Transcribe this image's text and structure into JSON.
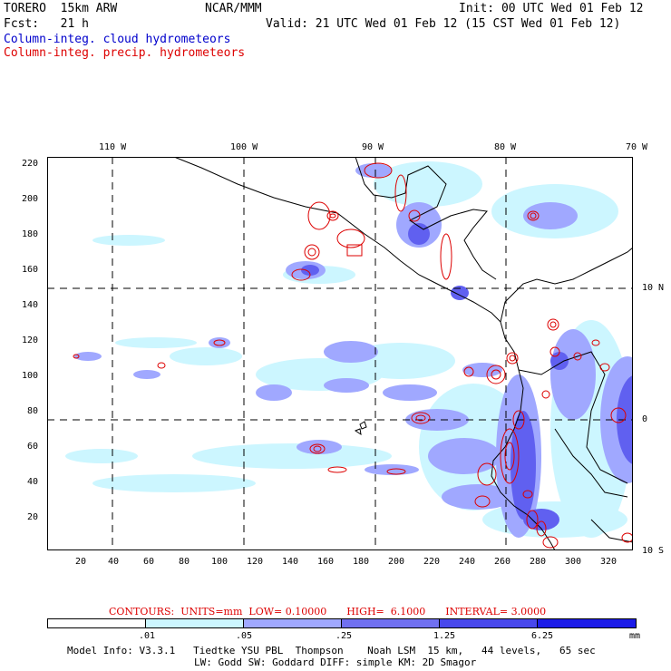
{
  "header": {
    "model": "TORERO  15km ARW",
    "forecast": "Fcst:   21 h",
    "org": "NCAR/MMM",
    "init": "Init: 00 UTC Wed 01 Feb 12",
    "valid": "Valid: 21 UTC Wed 01 Feb 12 (15 CST Wed 01 Feb 12)",
    "field_cloud": "Column-integ. cloud hydrometeors",
    "field_precip": "Column-integ. precip. hydrometeors"
  },
  "map": {
    "lon_labels": [
      "110 W",
      "100 W",
      "90 W",
      "80 W",
      "70 W"
    ],
    "lat_labels": [
      "10 N",
      "0",
      "10 S"
    ],
    "x_ticks": [
      "20",
      "40",
      "60",
      "80",
      "100",
      "120",
      "140",
      "160",
      "180",
      "200",
      "220",
      "240",
      "260",
      "280",
      "300",
      "320"
    ],
    "y_ticks": [
      "220",
      "200",
      "180",
      "160",
      "140",
      "120",
      "100",
      "80",
      "60",
      "40",
      "20"
    ],
    "colors": {
      "coast": "#000000",
      "grid": "#000000",
      "precip_contour": "#dd0000",
      "cloud_light": "#ccf6ff",
      "cloud_med": "#a0a8ff",
      "cloud_dark": "#6060f0"
    }
  },
  "contours": {
    "label": "CONTOURS:  UNITS=mm  LOW= 0.10000",
    "high": "HIGH=  6.1000",
    "interval": "INTERVAL= 3.0000"
  },
  "legend": {
    "labels": [
      ".01",
      ".05",
      ".25",
      "1.25",
      "6.25"
    ],
    "unit": "mm",
    "colors": [
      "#ffffff",
      "#ccf6ff",
      "#a0a8ff",
      "#7070f0",
      "#4848ec",
      "#1c1ce8"
    ]
  },
  "footer": {
    "line1": "Model Info: V3.3.1   Tiedtke YSU PBL  Thompson    Noah LSM  15 km,   44 levels,   65 sec",
    "line2": "LW: Godd SW: Goddard DIFF: simple KM: 2D Smagor"
  }
}
